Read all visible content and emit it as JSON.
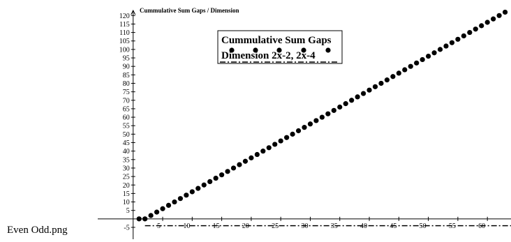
{
  "caption": "Even Odd.png",
  "chart_data": {
    "type": "scatter",
    "title": "Cummulative Sum Gaps / Dimension",
    "xlim": [
      -6,
      64
    ],
    "ylim": [
      -12,
      123
    ],
    "xticks": [
      5,
      10,
      15,
      20,
      25,
      30,
      35,
      40,
      45,
      50,
      55,
      60
    ],
    "yticks": [
      -5,
      5,
      10,
      15,
      20,
      25,
      30,
      35,
      40,
      45,
      50,
      55,
      60,
      65,
      70,
      75,
      80,
      85,
      90,
      95,
      100,
      105,
      110,
      115,
      120
    ],
    "series": [
      {
        "name": "Cummulative Sum Gaps",
        "color": "#000000",
        "mark": "dot",
        "x": [
          1,
          2,
          3,
          4,
          5,
          6,
          7,
          8,
          9,
          10,
          11,
          12,
          13,
          14,
          15,
          16,
          17,
          18,
          19,
          20,
          21,
          22,
          23,
          24,
          25,
          26,
          27,
          28,
          29,
          30,
          31,
          32,
          33,
          34,
          35,
          36,
          37,
          38,
          39,
          40,
          41,
          42,
          43,
          44,
          45,
          46,
          47,
          48,
          49,
          50,
          51,
          52,
          53,
          54,
          55,
          56,
          57,
          58,
          59,
          60,
          61,
          62,
          63
        ],
        "values": [
          0,
          0,
          2,
          4,
          6,
          8,
          10,
          12,
          14,
          16,
          18,
          20,
          22,
          24,
          26,
          28,
          30,
          32,
          34,
          36,
          38,
          40,
          42,
          44,
          46,
          48,
          50,
          52,
          54,
          56,
          58,
          60,
          62,
          64,
          66,
          68,
          70,
          72,
          74,
          76,
          78,
          80,
          82,
          84,
          86,
          88,
          90,
          92,
          94,
          96,
          98,
          100,
          102,
          104,
          106,
          108,
          110,
          112,
          114,
          116,
          118,
          120,
          122
        ]
      },
      {
        "name": "Dimension 2x-2, 2x-4",
        "color": "#000000",
        "mark": "dashdot",
        "x": [
          2,
          64
        ],
        "values": [
          -4,
          -4
        ]
      }
    ]
  }
}
